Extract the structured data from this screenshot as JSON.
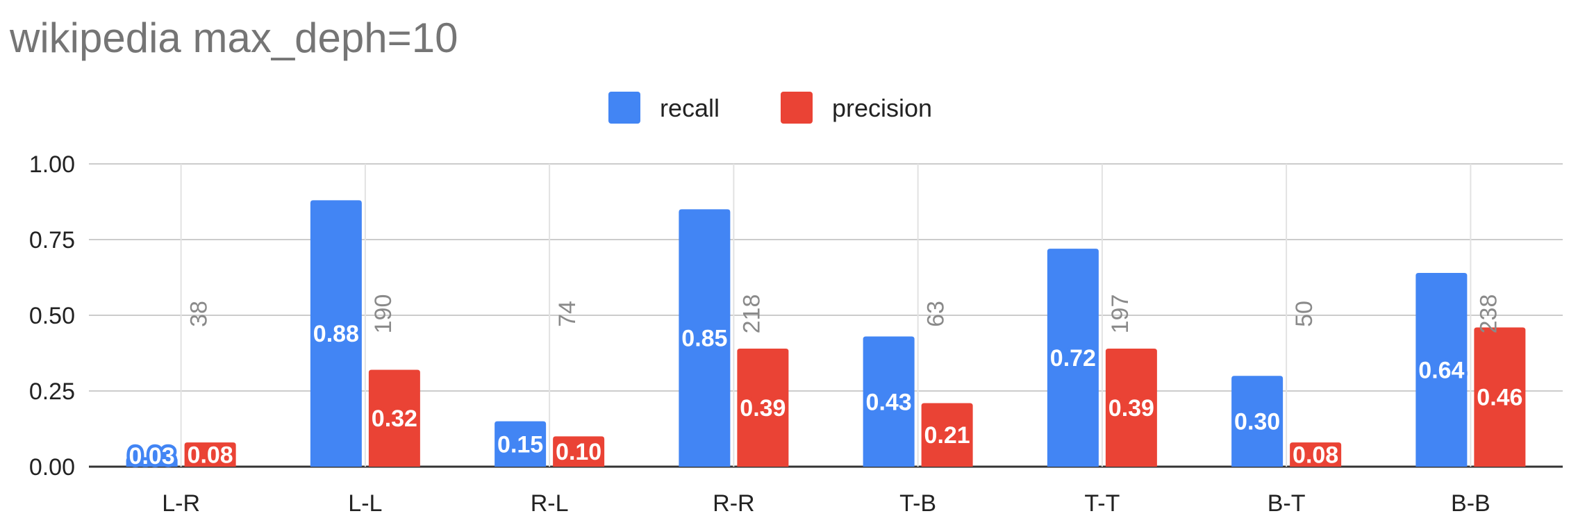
{
  "chart_data": {
    "type": "bar",
    "title": "wikipedia max_deph=10",
    "categories": [
      "L-R",
      "L-L",
      "R-L",
      "R-R",
      "T-B",
      "T-T",
      "B-T",
      "B-B"
    ],
    "series": [
      {
        "name": "recall",
        "color": "#4285f4",
        "values": [
          0.03,
          0.88,
          0.15,
          0.85,
          0.43,
          0.72,
          0.3,
          0.64
        ],
        "labels": [
          "0.03",
          "0.88",
          "0.15",
          "0.85",
          "0.43",
          "0.72",
          "0.30",
          "0.64"
        ]
      },
      {
        "name": "precision",
        "color": "#ea4335",
        "values": [
          0.08,
          0.32,
          0.1,
          0.39,
          0.21,
          0.39,
          0.08,
          0.46
        ],
        "labels": [
          "0.08",
          "0.32",
          "0.10",
          "0.39",
          "0.21",
          "0.39",
          "0.08",
          "0.46"
        ]
      }
    ],
    "counts": [
      "38",
      "190",
      "74",
      "218",
      "63",
      "197",
      "50",
      "238"
    ],
    "ylim": [
      0,
      1
    ],
    "yticks": [
      "0.00",
      "0.25",
      "0.50",
      "0.75",
      "1.00"
    ],
    "xlabel": "",
    "ylabel": "",
    "grid": true,
    "legend": "top-center"
  }
}
